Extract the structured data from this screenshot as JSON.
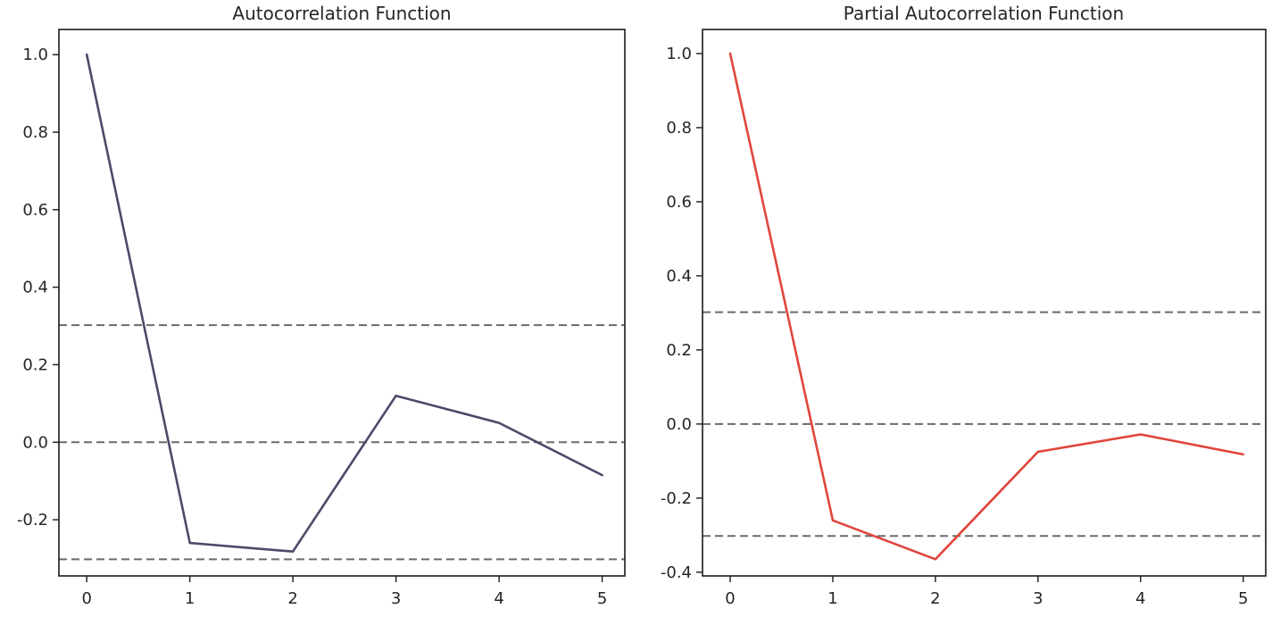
{
  "chart_data": [
    {
      "type": "line",
      "title": "Autocorrelation Function",
      "xlabel": "",
      "ylabel": "",
      "x": [
        0,
        1,
        2,
        3,
        4,
        5
      ],
      "series": [
        {
          "values": [
            1.0,
            -0.26,
            -0.282,
            0.12,
            0.05,
            -0.085
          ],
          "color": "#4b4a68"
        }
      ],
      "reference_lines": [
        0.302,
        0.0,
        -0.302
      ],
      "xlim": [
        -0.27,
        5.22
      ],
      "ylim": [
        -0.345,
        1.065
      ],
      "xticks": [
        "0",
        "1",
        "2",
        "3",
        "4",
        "5"
      ],
      "yticks": [
        "-0.2",
        "0.0",
        "0.2",
        "0.4",
        "0.6",
        "0.8",
        "1.0"
      ],
      "grid": false
    },
    {
      "type": "line",
      "title": "Partial Autocorrelation Function",
      "xlabel": "",
      "ylabel": "",
      "x": [
        0,
        1,
        2,
        3,
        4,
        5
      ],
      "series": [
        {
          "values": [
            1.0,
            -0.26,
            -0.365,
            -0.075,
            -0.028,
            -0.082
          ],
          "color": "#e0453d"
        }
      ],
      "reference_lines": [
        0.302,
        0.0,
        -0.302
      ],
      "xlim": [
        -0.27,
        5.22
      ],
      "ylim": [
        -0.41,
        1.065
      ],
      "xticks": [
        "0",
        "1",
        "2",
        "3",
        "4",
        "5"
      ],
      "yticks": [
        "-0.4",
        "-0.2",
        "0.0",
        "0.2",
        "0.4",
        "0.6",
        "0.8",
        "1.0"
      ],
      "grid": false
    }
  ]
}
